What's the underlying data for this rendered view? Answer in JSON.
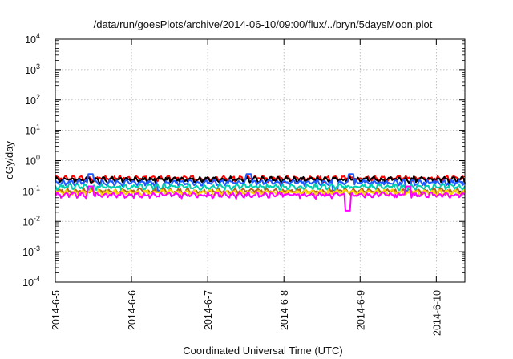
{
  "chart_data": {
    "type": "line",
    "title": "/data/run/goesPlots/archive/2014-06-10/09:00/flux/../bryn/5daysMoon.plot",
    "xlabel": "Coordinated Universal Time (UTC)",
    "ylabel": "cGy/day",
    "y_scale": "log",
    "ylim": [
      0.0001,
      10000
    ],
    "y_ticks": [
      {
        "base": "10",
        "exp": "-4",
        "value": 0.0001
      },
      {
        "base": "10",
        "exp": "-3",
        "value": 0.001
      },
      {
        "base": "10",
        "exp": "-2",
        "value": 0.01
      },
      {
        "base": "10",
        "exp": "-1",
        "value": 0.1
      },
      {
        "base": "10",
        "exp": "0",
        "value": 1
      },
      {
        "base": "10",
        "exp": "1",
        "value": 10
      },
      {
        "base": "10",
        "exp": "2",
        "value": 100
      },
      {
        "base": "10",
        "exp": "3",
        "value": 1000
      },
      {
        "base": "10",
        "exp": "4",
        "value": 10000
      }
    ],
    "xlim": [
      "2014-06-05T00:00",
      "2014-06-10T09:00"
    ],
    "x_ticks": [
      {
        "label": "2014-6-5",
        "date": "2014-06-05"
      },
      {
        "label": "2014-6-6",
        "date": "2014-06-06"
      },
      {
        "label": "2014-6-7",
        "date": "2014-06-07"
      },
      {
        "label": "2014-6-8",
        "date": "2014-06-08"
      },
      {
        "label": "2014-6-9",
        "date": "2014-06-09"
      },
      {
        "label": "2014-6-10",
        "date": "2014-06-10"
      }
    ],
    "grid": true,
    "series": [
      {
        "color": "#ff0000",
        "level": 0.26,
        "spike_dates": []
      },
      {
        "color": "#000000",
        "level": 0.24,
        "spike_dates": []
      },
      {
        "color": "#1e5aff",
        "level": 0.19,
        "spike_dates": [
          "2014-06-05T11:00",
          "2014-06-06T09:00",
          "2014-06-07T13:00",
          "2014-06-08T16:00",
          "2014-06-08T21:00",
          "2014-06-09T15:00"
        ]
      },
      {
        "color": "#00d0b0",
        "level": 0.14,
        "spike_dates": []
      },
      {
        "color": "#b4641e",
        "level": 0.1,
        "spike_dates": []
      },
      {
        "color": "#ffd700",
        "level": 0.09,
        "spike_dates": []
      },
      {
        "color": "#ff00ff",
        "level": 0.075,
        "spike_dates": [
          "2014-06-05T11:00",
          "2014-06-08T20:00",
          "2014-06-09T15:00"
        ]
      }
    ]
  }
}
